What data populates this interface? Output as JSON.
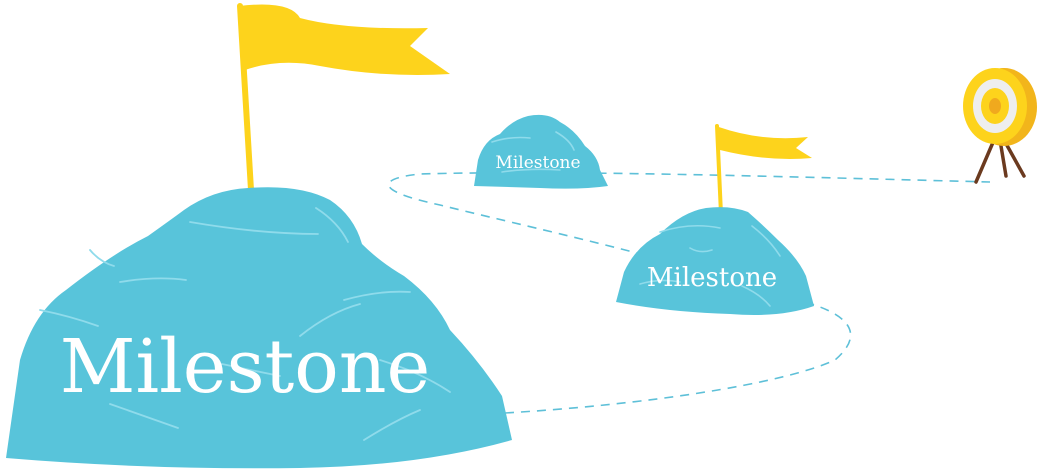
{
  "milestones": [
    {
      "label": "Milestone"
    },
    {
      "label": "Milestone"
    },
    {
      "label": "Milestone"
    }
  ],
  "colors": {
    "rock": "#58c4da",
    "rock_line": "#8fdbeb",
    "flag": "#fdd31c",
    "path": "#5ec0d8",
    "target_outer": "#f2b51b",
    "target_face": "#fdd31c",
    "target_ring": "#eeeeee",
    "target_center": "#f0a91e",
    "tripod": "#6b3a1f"
  },
  "icons": {
    "milestone_large": "flag-rock-icon",
    "milestone_small": "rock-icon",
    "milestone_medium": "flag-rock-icon",
    "goal": "target-icon"
  }
}
